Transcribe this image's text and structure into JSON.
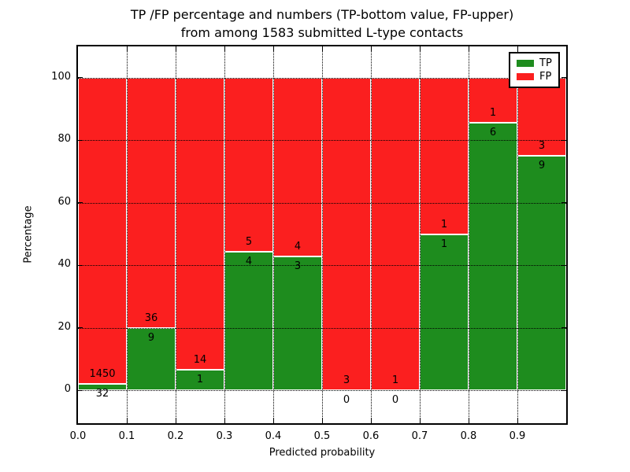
{
  "title": {
    "line1": "TP /FP percentage and numbers (TP-bottom value, FP-upper)",
    "line2": "from among 1583 submitted L-type contacts"
  },
  "chart_data": {
    "type": "bar",
    "stacked": true,
    "normalized_to_percent": true,
    "title": "TP /FP percentage and numbers (TP-bottom value, FP-upper)\nfrom among 1583 submitted L-type contacts",
    "xlabel": "Predicted probability",
    "ylabel": "Percentage",
    "total_contacts": 1583,
    "x_bin_start": 0.0,
    "bin_width": 0.1,
    "x_tick_labels": [
      "0.0",
      "0.1",
      "0.2",
      "0.3",
      "0.4",
      "0.5",
      "0.6",
      "0.7",
      "0.8",
      "0.9"
    ],
    "y_ticks": [
      0,
      20,
      40,
      60,
      80,
      100
    ],
    "xlim": [
      0.0,
      1.0
    ],
    "ylim": [
      -10.5,
      110
    ],
    "grid": true,
    "series": [
      {
        "name": "TP",
        "color": "#1e8c1e",
        "counts": [
          32,
          9,
          1,
          4,
          3,
          0,
          0,
          1,
          6,
          9
        ]
      },
      {
        "name": "FP",
        "color": "#fb1f1f",
        "counts": [
          1450,
          36,
          14,
          5,
          4,
          3,
          1,
          1,
          1,
          3
        ]
      }
    ],
    "tp_percent_heights": [
      2.16,
      20.0,
      6.67,
      44.44,
      42.86,
      0.0,
      0.0,
      50.0,
      85.71,
      75.0
    ],
    "legend": {
      "position": "upper-right",
      "entries": [
        {
          "label": "TP",
          "color": "#1e8c1e"
        },
        {
          "label": "FP",
          "color": "#fb1f1f"
        }
      ]
    }
  },
  "colors": {
    "tp_green": "#1e8c1e",
    "fp_red": "#fb1f1f",
    "grid": "#000000",
    "background": "#ffffff"
  }
}
